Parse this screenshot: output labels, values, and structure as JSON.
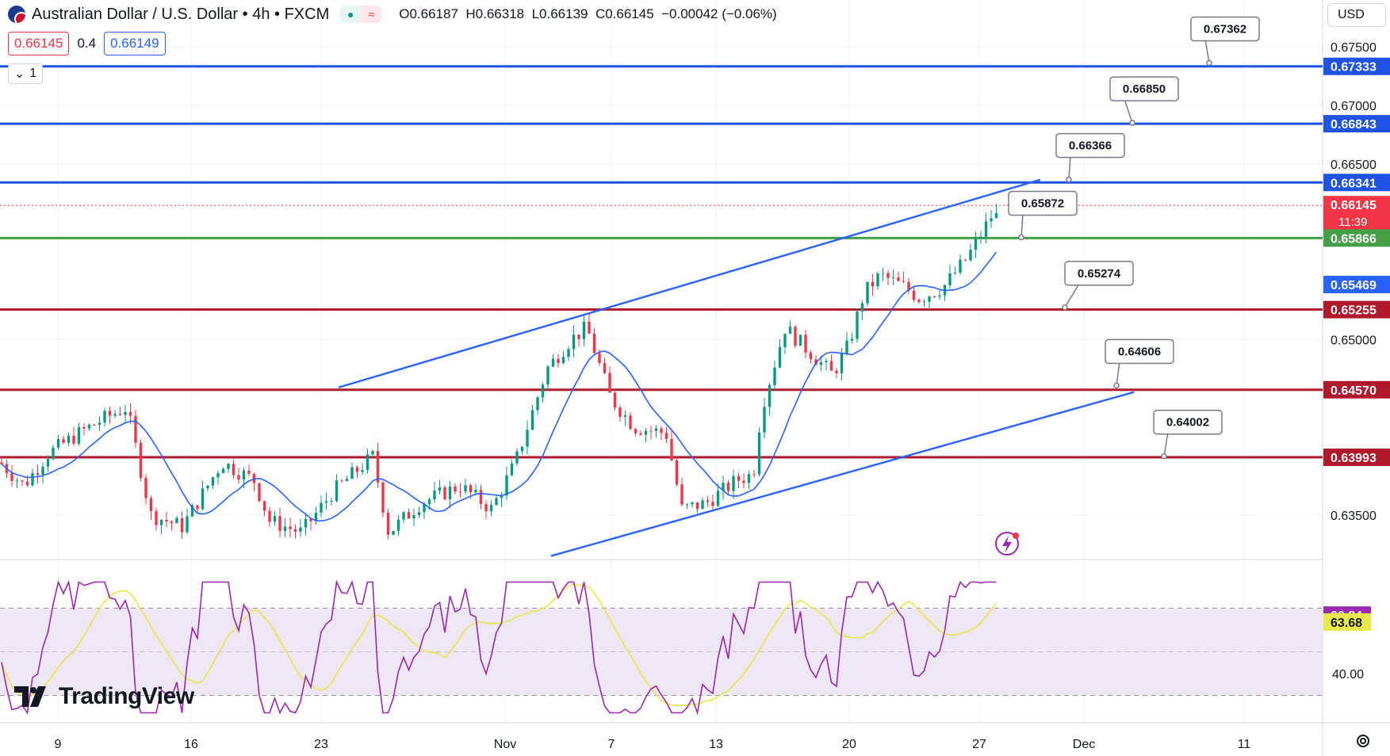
{
  "header": {
    "symbol": "Australian Dollar / U.S. Dollar • 4h • FXCM",
    "ohlc": {
      "open_label": "O",
      "open": "0.66187",
      "high_label": "H",
      "high": "0.66318",
      "low_label": "L",
      "low": "0.66139",
      "close_label": "C",
      "close": "0.66145",
      "change": "−0.00042 (−0.06%)"
    },
    "icons": [
      "flag-au-us-icon",
      "green-dot-icon",
      "wave-icon"
    ]
  },
  "quote": {
    "bid": "0.66145",
    "spread": "0.4",
    "ask": "0.66149"
  },
  "indicator_toggle": {
    "count": "1",
    "icon": "chevron-down-icon"
  },
  "currency": "USD",
  "watermark": "TradingView",
  "colors": {
    "up": "#089981",
    "down": "#f23645",
    "candle": "#131722",
    "ma": "#2962ff",
    "trendline": "#2962ff",
    "support": "#b2182b",
    "resistance_blue": "#1e53e5",
    "green_level": "#43a047",
    "rsi": "#9c27b0",
    "rsi_ma": "#e8e84a",
    "rsi_band": "#ede7f6"
  },
  "chart_data": {
    "type": "candlestick",
    "title": "",
    "interval": "4h",
    "y_price_ticks": [
      "0.67500",
      "0.67000",
      "0.66500",
      "0.65000",
      "0.63500"
    ],
    "x_ticks": [
      "9",
      "16",
      "23",
      "Nov",
      "7",
      "13",
      "20",
      "27",
      "Dec",
      "11"
    ],
    "price_range": [
      0.6312,
      0.679
    ],
    "horizontal_levels": [
      {
        "value": "0.67333",
        "style": "resistance-blue"
      },
      {
        "value": "0.66843",
        "style": "resistance-blue"
      },
      {
        "value": "0.66341",
        "style": "resistance-blue"
      },
      {
        "value": "0.65866",
        "style": "green"
      },
      {
        "value": "0.65255",
        "style": "support-red"
      },
      {
        "value": "0.64570",
        "style": "support-red"
      },
      {
        "value": "0.63993",
        "style": "support-red"
      }
    ],
    "axis_labels": [
      {
        "value": "0.67333",
        "color": "#1e53e5"
      },
      {
        "value": "0.66843",
        "color": "#1e53e5"
      },
      {
        "value": "0.66341",
        "color": "#1e53e5"
      },
      {
        "value": "0.66145",
        "color": "#f23645",
        "sub": "11:39"
      },
      {
        "value": "0.65866",
        "color": "#43a047"
      },
      {
        "value": "0.65469",
        "color": "#2962ff"
      },
      {
        "value": "0.65255",
        "color": "#b2182b"
      },
      {
        "value": "0.64570",
        "color": "#b2182b"
      },
      {
        "value": "0.63993",
        "color": "#b2182b"
      }
    ],
    "callouts": [
      "0.67362",
      "0.66850",
      "0.66366",
      "0.65872",
      "0.65274",
      "0.64606",
      "0.64002"
    ],
    "current_price": 0.66145,
    "rsi": {
      "ticks": [
        "40.00"
      ],
      "upper": 70,
      "lower": 30,
      "value": "66.84",
      "ma_value": "63.68"
    }
  }
}
